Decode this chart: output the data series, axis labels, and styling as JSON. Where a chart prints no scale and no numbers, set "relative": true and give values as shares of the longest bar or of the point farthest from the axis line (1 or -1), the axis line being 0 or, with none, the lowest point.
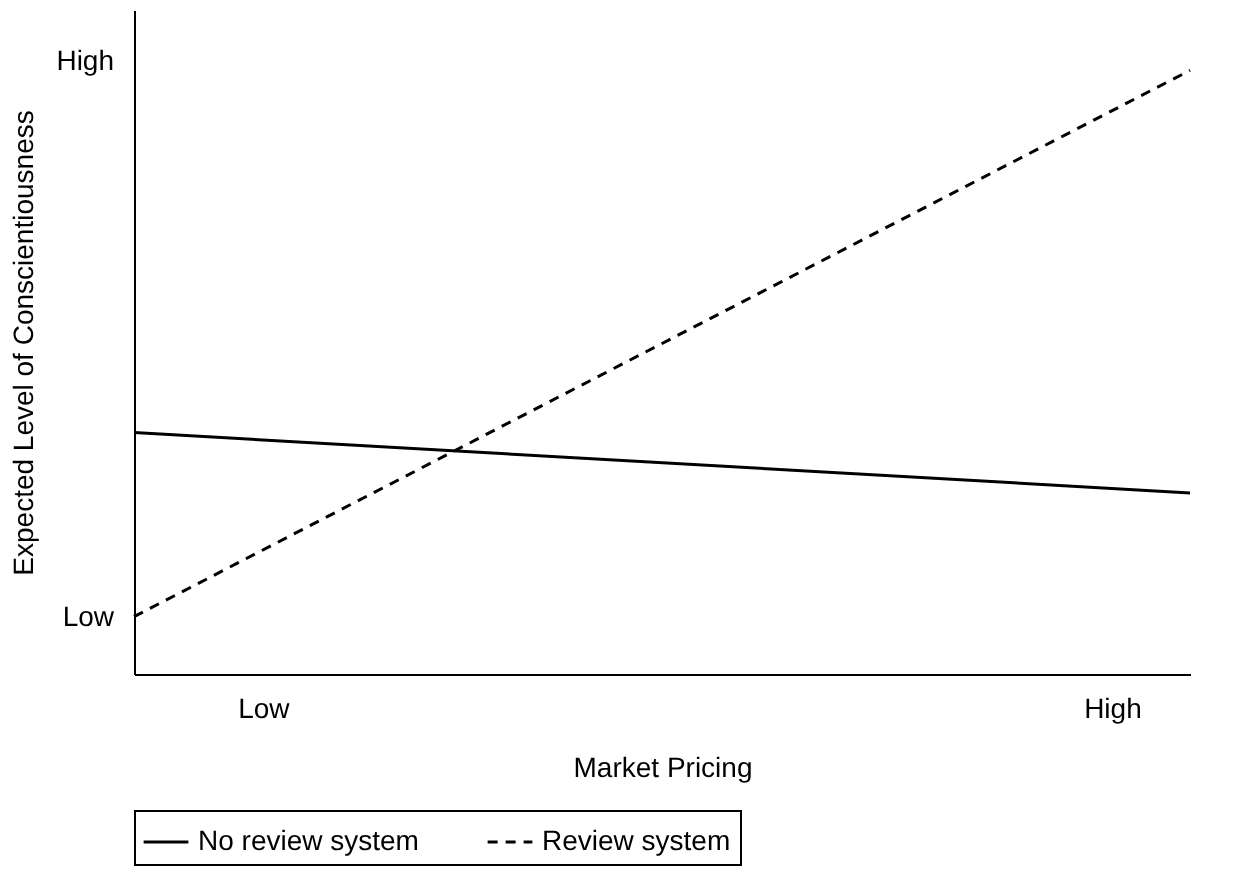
{
  "chart_data": {
    "type": "line",
    "xlabel": "Market Pricing",
    "ylabel": "Expected Level of Conscientiousness",
    "relative": true,
    "categories": [
      null,
      null
    ],
    "annotations": [
      "Low",
      "High",
      "Low",
      "High"
    ],
    "grid": false,
    "legend": "bottom",
    "marker": "none",
    "series": [
      {
        "name": "No review system",
        "color": "#000000",
        "line_style": "solid",
        "values": [
          0.4,
          0.3
        ]
      },
      {
        "name": "Review system",
        "color": "#000000",
        "line_style": "dashed",
        "values": [
          0.095,
          1
        ]
      }
    ]
  }
}
